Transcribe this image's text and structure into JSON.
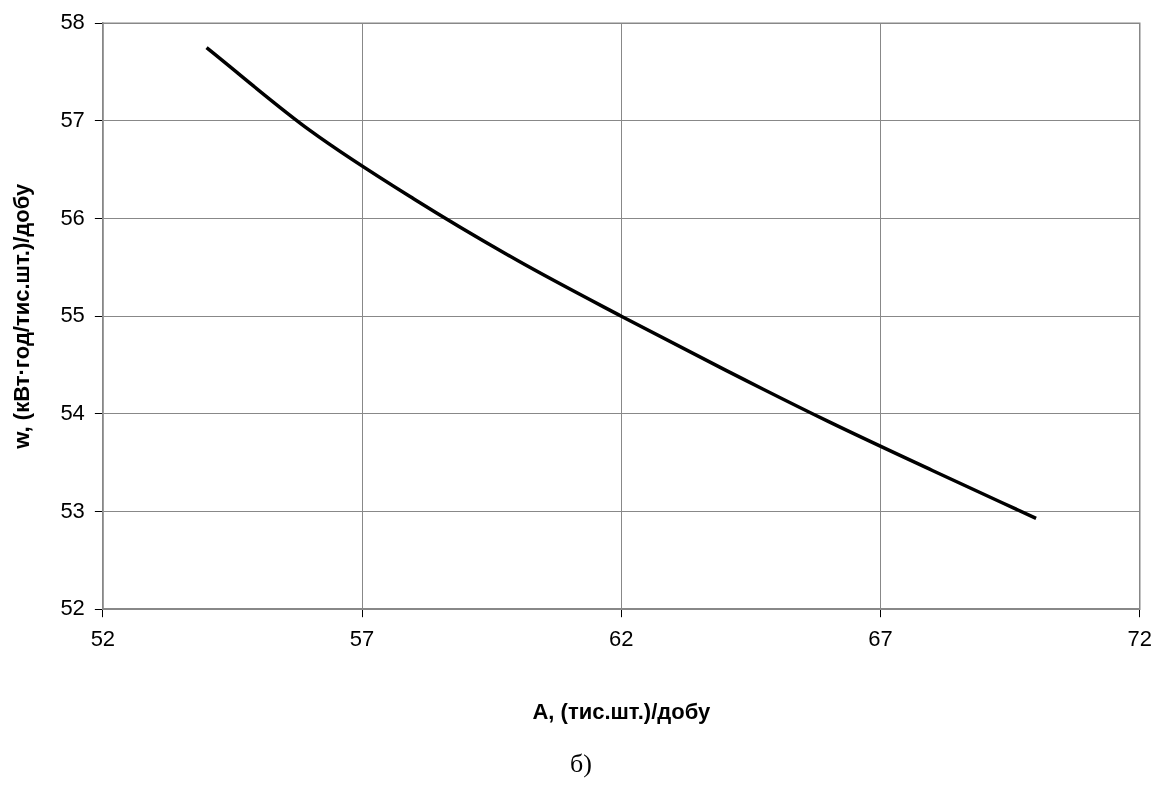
{
  "chart_data": {
    "type": "line",
    "xlabel": "A, (тис.шт.)/добу",
    "ylabel": "w, (кВт·год/тис.шт.)/добу",
    "series": [
      {
        "color": "#000000",
        "x": [
          54,
          56,
          58,
          60,
          62,
          64,
          66,
          68,
          70
        ],
        "values": [
          57.75,
          56.9,
          56.2,
          55.57,
          55,
          54.45,
          53.92,
          53.42,
          52.93
        ]
      }
    ],
    "xlim": [
      52,
      72
    ],
    "xticks": [
      52,
      57,
      62,
      67,
      72
    ],
    "ylim": [
      52,
      58
    ],
    "yticks": [
      52,
      53,
      54,
      55,
      56,
      57,
      58
    ],
    "grid": true,
    "legend": false,
    "marker": "none",
    "line_style": "solid",
    "annotations": [
      "б)"
    ]
  }
}
